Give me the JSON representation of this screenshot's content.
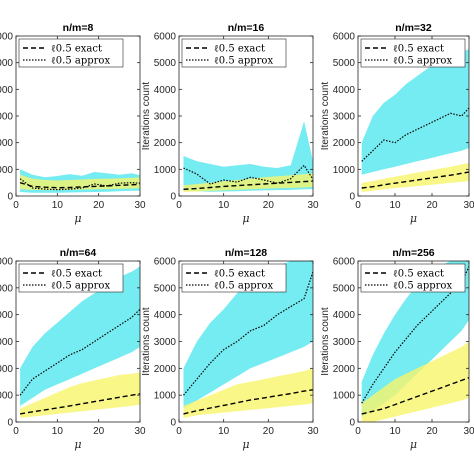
{
  "chart_data": [
    {
      "type": "line",
      "title": "n/m=8",
      "xlabel": "μ",
      "ylabel": "",
      "xlim": [
        0,
        30
      ],
      "ylim": [
        0,
        6000
      ],
      "xticks": [
        "0",
        "10",
        "20",
        "30"
      ],
      "yticks": [
        "0",
        "1000",
        "2000",
        "3000",
        "4000",
        "5000",
        "6000"
      ],
      "legend": [
        "ℓ0.5 exact",
        "ℓ0.5 approx"
      ],
      "x": [
        1,
        4,
        7,
        10,
        13,
        16,
        19,
        22,
        25,
        28,
        30
      ],
      "series": [
        {
          "name": "ℓ0.5 exact",
          "style": "dashed",
          "values": [
            500,
            360,
            330,
            310,
            320,
            340,
            360,
            380,
            400,
            420,
            440
          ],
          "band_low": [
            250,
            230,
            220,
            220,
            230,
            240,
            250,
            260,
            270,
            280,
            290
          ],
          "band_high": [
            800,
            650,
            600,
            580,
            600,
            620,
            640,
            650,
            660,
            680,
            700
          ],
          "band_color": "#f7f56a"
        },
        {
          "name": "ℓ0.5 approx",
          "style": "dotted",
          "values": [
            650,
            300,
            260,
            240,
            260,
            300,
            450,
            380,
            480,
            500,
            480
          ],
          "band_low": [
            150,
            120,
            120,
            120,
            130,
            140,
            150,
            160,
            180,
            200,
            200
          ],
          "band_high": [
            1000,
            800,
            700,
            750,
            820,
            760,
            900,
            850,
            800,
            850,
            780
          ],
          "band_color": "#5de8f0"
        }
      ]
    },
    {
      "type": "line",
      "title": "n/m=16",
      "xlabel": "μ",
      "ylabel": "Iterations count",
      "xlim": [
        0,
        30
      ],
      "ylim": [
        0,
        6000
      ],
      "xticks": [
        "0",
        "10",
        "20",
        "30"
      ],
      "yticks": [
        "0",
        "1000",
        "2000",
        "3000",
        "4000",
        "5000",
        "6000"
      ],
      "legend": [
        "ℓ0.5 exact",
        "ℓ0.5 approx"
      ],
      "x": [
        1,
        4,
        7,
        10,
        13,
        16,
        19,
        22,
        25,
        28,
        30
      ],
      "series": [
        {
          "name": "ℓ0.5 exact",
          "style": "dashed",
          "values": [
            250,
            280,
            320,
            360,
            390,
            420,
            450,
            480,
            510,
            540,
            560
          ],
          "band_low": [
            150,
            170,
            190,
            210,
            230,
            250,
            270,
            290,
            300,
            320,
            340
          ],
          "band_high": [
            400,
            450,
            500,
            550,
            600,
            650,
            700,
            740,
            780,
            820,
            850
          ],
          "band_color": "#f7f56a"
        },
        {
          "name": "ℓ0.5 approx",
          "style": "dotted",
          "values": [
            1050,
            820,
            450,
            600,
            520,
            700,
            600,
            480,
            650,
            1150,
            620
          ],
          "band_low": [
            200,
            180,
            160,
            170,
            180,
            200,
            210,
            220,
            230,
            250,
            260
          ],
          "band_high": [
            1500,
            1300,
            1200,
            1100,
            1150,
            1200,
            1100,
            1050,
            1150,
            2800,
            1300
          ],
          "band_color": "#5de8f0"
        }
      ]
    },
    {
      "type": "line",
      "title": "n/m=32",
      "xlabel": "μ",
      "ylabel": "Iterations count",
      "xlim": [
        0,
        30
      ],
      "ylim": [
        0,
        6000
      ],
      "xticks": [
        "0",
        "10",
        "20",
        "30"
      ],
      "yticks": [
        "0",
        "1000",
        "2000",
        "3000",
        "4000",
        "5000",
        "6000"
      ],
      "legend": [
        "ℓ0.5 exact",
        "ℓ0.5 approx"
      ],
      "x": [
        1,
        4,
        7,
        10,
        13,
        16,
        19,
        22,
        25,
        28,
        30
      ],
      "series": [
        {
          "name": "ℓ0.5 exact",
          "style": "dashed",
          "values": [
            300,
            350,
            420,
            480,
            540,
            600,
            660,
            720,
            780,
            850,
            900
          ],
          "band_low": [
            150,
            200,
            250,
            300,
            330,
            370,
            410,
            450,
            490,
            530,
            560
          ],
          "band_high": [
            500,
            560,
            650,
            720,
            800,
            880,
            950,
            1020,
            1100,
            1180,
            1250
          ],
          "band_color": "#f7f56a"
        },
        {
          "name": "ℓ0.5 approx",
          "style": "dotted",
          "values": [
            1300,
            1700,
            2100,
            2000,
            2300,
            2500,
            2700,
            2900,
            3100,
            3000,
            3300
          ],
          "band_low": [
            800,
            900,
            1000,
            1100,
            1200,
            1300,
            1400,
            1500,
            1600,
            1700,
            1800
          ],
          "band_high": [
            2000,
            3000,
            3500,
            3800,
            4200,
            4500,
            4800,
            5000,
            5200,
            5400,
            5500
          ],
          "band_color": "#5de8f0"
        }
      ]
    },
    {
      "type": "line",
      "title": "n/m=64",
      "xlabel": "μ",
      "ylabel": "",
      "xlim": [
        0,
        30
      ],
      "ylim": [
        0,
        6000
      ],
      "xticks": [
        "0",
        "10",
        "20",
        "30"
      ],
      "yticks": [
        "0",
        "1000",
        "2000",
        "3000",
        "4000",
        "5000",
        "6000"
      ],
      "legend": [
        "ℓ0.5 exact",
        "ℓ0.5 approx"
      ],
      "x": [
        1,
        4,
        7,
        10,
        13,
        16,
        19,
        22,
        25,
        28,
        30
      ],
      "series": [
        {
          "name": "ℓ0.5 exact",
          "style": "dashed",
          "values": [
            300,
            380,
            450,
            520,
            600,
            680,
            760,
            840,
            920,
            1000,
            1050
          ],
          "band_low": [
            150,
            200,
            250,
            300,
            350,
            400,
            450,
            500,
            550,
            600,
            650
          ],
          "band_high": [
            500,
            700,
            900,
            1100,
            1300,
            1450,
            1550,
            1650,
            1750,
            1800,
            1850
          ],
          "band_color": "#f7f56a"
        },
        {
          "name": "ℓ0.5 approx",
          "style": "dotted",
          "values": [
            1000,
            1600,
            1900,
            2200,
            2500,
            2700,
            3000,
            3300,
            3600,
            3900,
            4200
          ],
          "band_low": [
            600,
            900,
            1200,
            1400,
            1600,
            1800,
            2000,
            2200,
            2400,
            2600,
            2800
          ],
          "band_high": [
            2000,
            2800,
            3300,
            3700,
            4100,
            4500,
            4800,
            5100,
            5400,
            5600,
            5800
          ],
          "band_color": "#5de8f0"
        }
      ]
    },
    {
      "type": "line",
      "title": "n/m=128",
      "xlabel": "μ",
      "ylabel": "Iterations count",
      "xlim": [
        0,
        30
      ],
      "ylim": [
        0,
        6000
      ],
      "xticks": [
        "0",
        "10",
        "20",
        "30"
      ],
      "yticks": [
        "0",
        "1000",
        "2000",
        "3000",
        "4000",
        "5000",
        "6000"
      ],
      "legend": [
        "ℓ0.5 exact",
        "ℓ0.5 approx"
      ],
      "x": [
        1,
        4,
        7,
        10,
        13,
        16,
        19,
        22,
        25,
        28,
        30
      ],
      "series": [
        {
          "name": "ℓ0.5 exact",
          "style": "dashed",
          "values": [
            300,
            420,
            520,
            620,
            720,
            820,
            900,
            980,
            1060,
            1150,
            1200
          ],
          "band_low": [
            150,
            250,
            300,
            350,
            400,
            450,
            500,
            550,
            600,
            650,
            700
          ],
          "band_high": [
            600,
            800,
            1000,
            1200,
            1400,
            1500,
            1600,
            1700,
            1800,
            1900,
            2000
          ],
          "band_color": "#f7f56a"
        },
        {
          "name": "ℓ0.5 approx",
          "style": "dotted",
          "values": [
            1000,
            1600,
            2200,
            2700,
            3000,
            3400,
            3600,
            4000,
            4300,
            4600,
            5600
          ],
          "band_low": [
            500,
            800,
            1100,
            1400,
            1700,
            2000,
            2200,
            2400,
            2600,
            2800,
            3000
          ],
          "band_high": [
            2000,
            3000,
            3700,
            4200,
            4800,
            5200,
            5500,
            5800,
            6000,
            6000,
            6000
          ],
          "band_color": "#5de8f0"
        }
      ]
    },
    {
      "type": "line",
      "title": "n/m=256",
      "xlabel": "μ",
      "ylabel": "Iterations count",
      "xlim": [
        0,
        30
      ],
      "ylim": [
        0,
        6000
      ],
      "xticks": [
        "0",
        "10",
        "20",
        "30"
      ],
      "yticks": [
        "0",
        "1000",
        "2000",
        "3000",
        "4000",
        "5000",
        "6000"
      ],
      "legend": [
        "ℓ0.5 exact",
        "ℓ0.5 approx"
      ],
      "x": [
        1,
        4,
        7,
        10,
        13,
        16,
        19,
        22,
        25,
        28,
        30
      ],
      "series": [
        {
          "name": "ℓ0.5 exact",
          "style": "dashed",
          "values": [
            300,
            400,
            500,
            650,
            800,
            950,
            1100,
            1250,
            1400,
            1550,
            1650
          ],
          "band_low": [
            0,
            0,
            100,
            200,
            300,
            400,
            500,
            600,
            700,
            800,
            900
          ],
          "band_high": [
            700,
            1000,
            1300,
            1600,
            1800,
            2000,
            2200,
            2400,
            2600,
            2800,
            3000
          ],
          "band_color": "#f7f56a"
        },
        {
          "name": "ℓ0.5 approx",
          "style": "dotted",
          "values": [
            700,
            1400,
            2000,
            2600,
            3100,
            3600,
            4000,
            4400,
            4800,
            5200,
            5800
          ],
          "band_low": [
            200,
            400,
            700,
            1000,
            1400,
            1800,
            2200,
            2600,
            3000,
            3400,
            3800
          ],
          "band_high": [
            1500,
            2500,
            3300,
            4000,
            4600,
            5100,
            5500,
            5800,
            6000,
            6000,
            6000
          ],
          "band_color": "#5de8f0"
        }
      ]
    }
  ]
}
